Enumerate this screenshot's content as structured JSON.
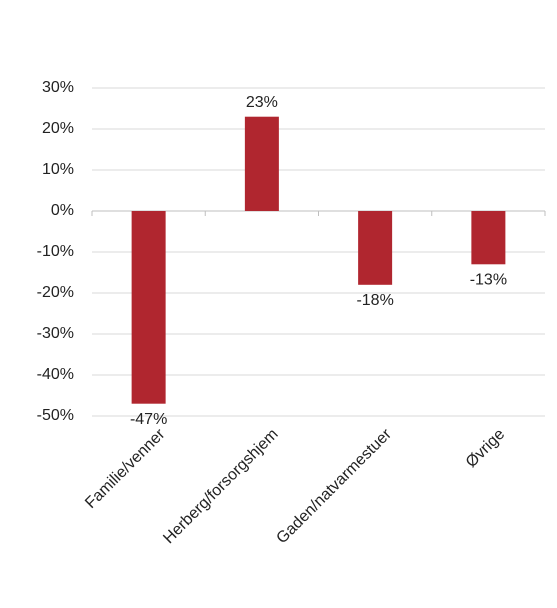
{
  "chart_data": {
    "type": "bar",
    "categories": [
      "Familie/venner",
      "Herberg/forsorgshjem",
      "Gaden/natvarmestuer",
      "Øvrige"
    ],
    "values": [
      -47,
      23,
      -18,
      -13
    ],
    "value_labels": [
      "-47%",
      "23%",
      "-18%",
      "-13%"
    ],
    "color": "#b0262f",
    "ylim": [
      -50,
      30
    ],
    "yticks": [
      {
        "value": 30,
        "label": "30%"
      },
      {
        "value": 20,
        "label": "20%"
      },
      {
        "value": 10,
        "label": "10%"
      },
      {
        "value": 0,
        "label": "0%"
      },
      {
        "value": -10,
        "label": "-10%"
      },
      {
        "value": -20,
        "label": "-20%"
      },
      {
        "value": -30,
        "label": "-30%"
      },
      {
        "value": -40,
        "label": "-40%"
      },
      {
        "value": -50,
        "label": "-50%"
      }
    ],
    "grid": true
  }
}
